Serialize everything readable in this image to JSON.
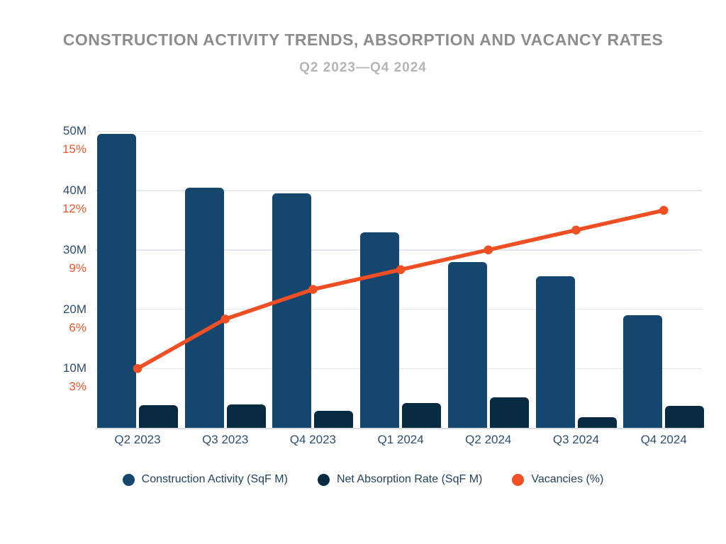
{
  "header": {
    "title": "CONSTRUCTION ACTIVITY TRENDS, ABSORPTION AND VACANCY RATES",
    "subtitle": "Q2 2023—Q4 2024"
  },
  "colors": {
    "background": "#FFFFFF",
    "title_text": "#8D8D8D",
    "subtitle_text": "#B5B5B5",
    "sqft_axis_text": "#2F4E6E",
    "vacancy_axis_text": "#F0552B",
    "x_axis_text": "#2F4E6E",
    "legend_text": "#24435E",
    "gridline": "#E4E8EC",
    "axis_line": "#D9DEE3"
  },
  "chart_data": {
    "type": "combo-bar-line",
    "title": "CONSTRUCTION ACTIVITY TRENDS, ABSORPTION AND VACANCY RATES",
    "subtitle": "Q2 2023—Q4 2024",
    "categories": [
      "Q2 2023",
      "Q3 2023",
      "Q4 2023",
      "Q1 2024",
      "Q2 2024",
      "Q3 2024",
      "Q4 2024"
    ],
    "series": [
      {
        "name": "Construction Activity (SqF M)",
        "type": "bar",
        "color": "#14466E",
        "unit": "million sq ft",
        "values": [
          49.5,
          40.5,
          39.5,
          33,
          28,
          25.5,
          19
        ]
      },
      {
        "name": "Net Absorption Rate (SqF M)",
        "type": "bar",
        "color": "#062A40",
        "unit": "million sq ft",
        "values": [
          3.8,
          3.9,
          2.9,
          4.2,
          5.1,
          1.8,
          3.7
        ]
      },
      {
        "name": "Vacancies (%)",
        "type": "line",
        "color": "#F04F23",
        "unit": "%",
        "values": [
          3,
          5.5,
          7,
          8,
          9,
          10,
          11
        ]
      }
    ],
    "y_axis": {
      "sqft": {
        "ticks": [
          "10M",
          "20M",
          "30M",
          "40M",
          "50M"
        ],
        "range": [
          0,
          52
        ]
      },
      "pct": {
        "ticks": [
          "3%",
          "6%",
          "9%",
          "12%",
          "15%"
        ],
        "range": [
          0,
          15.6
        ]
      },
      "aligned_gridlines": true
    },
    "grid": "horizontal",
    "legend_position": "bottom"
  }
}
